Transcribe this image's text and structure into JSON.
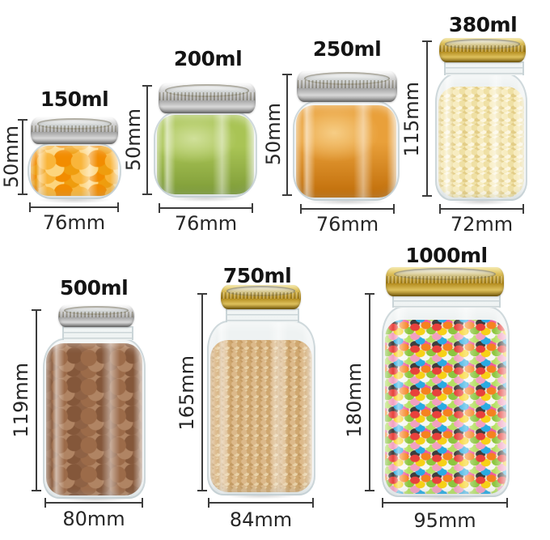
{
  "colors": {
    "background": "#ffffff",
    "text": "#141414",
    "dimension_text": "#262626",
    "dimension_line": "#3c3c3c",
    "lid_silver": [
      "#ffffff",
      "#d8d8d8",
      "#a3a3a3",
      "#7e7e7e"
    ],
    "lid_gold": [
      "#f7ecb2",
      "#ddc05c",
      "#b28a1c",
      "#8a6a10"
    ]
  },
  "jars": [
    {
      "volume": "150ml",
      "height": "50mm",
      "diameter": "76mm",
      "lid": "silver",
      "content": "orange-slices",
      "palette": [
        "#f9b53a",
        "#f28c00",
        "#fdd57e",
        "#ef9d0e"
      ]
    },
    {
      "volume": "200ml",
      "height": "50mm",
      "diameter": "76mm",
      "lid": "silver",
      "content": "green-jam",
      "palette": [
        "#a9c455",
        "#d0e09a",
        "#7d9b37"
      ]
    },
    {
      "volume": "250ml",
      "height": "50mm",
      "diameter": "76mm",
      "lid": "silver",
      "content": "orange-jam",
      "palette": [
        "#e9a03a",
        "#f6cd85",
        "#bf6c08"
      ]
    },
    {
      "volume": "380ml",
      "height": "115mm",
      "diameter": "72mm",
      "lid": "gold",
      "content": "corn-flakes",
      "palette": [
        "#f7ecc0",
        "#efe0a4",
        "#fcf6e0",
        "#e3cd86"
      ]
    },
    {
      "volume": "500ml",
      "height": "119mm",
      "diameter": "80mm",
      "lid": "silver",
      "content": "brown-balls",
      "palette": [
        "#9c6b49",
        "#84573a",
        "#b08463",
        "#8f6245"
      ]
    },
    {
      "volume": "750ml",
      "height": "165mm",
      "diameter": "84mm",
      "lid": "gold",
      "content": "tan-beads",
      "palette": [
        "#dcb98a",
        "#cfa76f",
        "#e9d2a8",
        "#c39a63"
      ]
    },
    {
      "volume": "1000ml",
      "height": "180mm",
      "diameter": "95mm",
      "lid": "gold",
      "content": "jelly-beans",
      "palette": [
        "#e8413c",
        "#f5821f",
        "#f7d117",
        "#8cc63f",
        "#f2a0c0",
        "#f7f7f2",
        "#29abe2",
        "#b5e061",
        "#3d3d3d",
        "#ef5ba1"
      ]
    }
  ]
}
